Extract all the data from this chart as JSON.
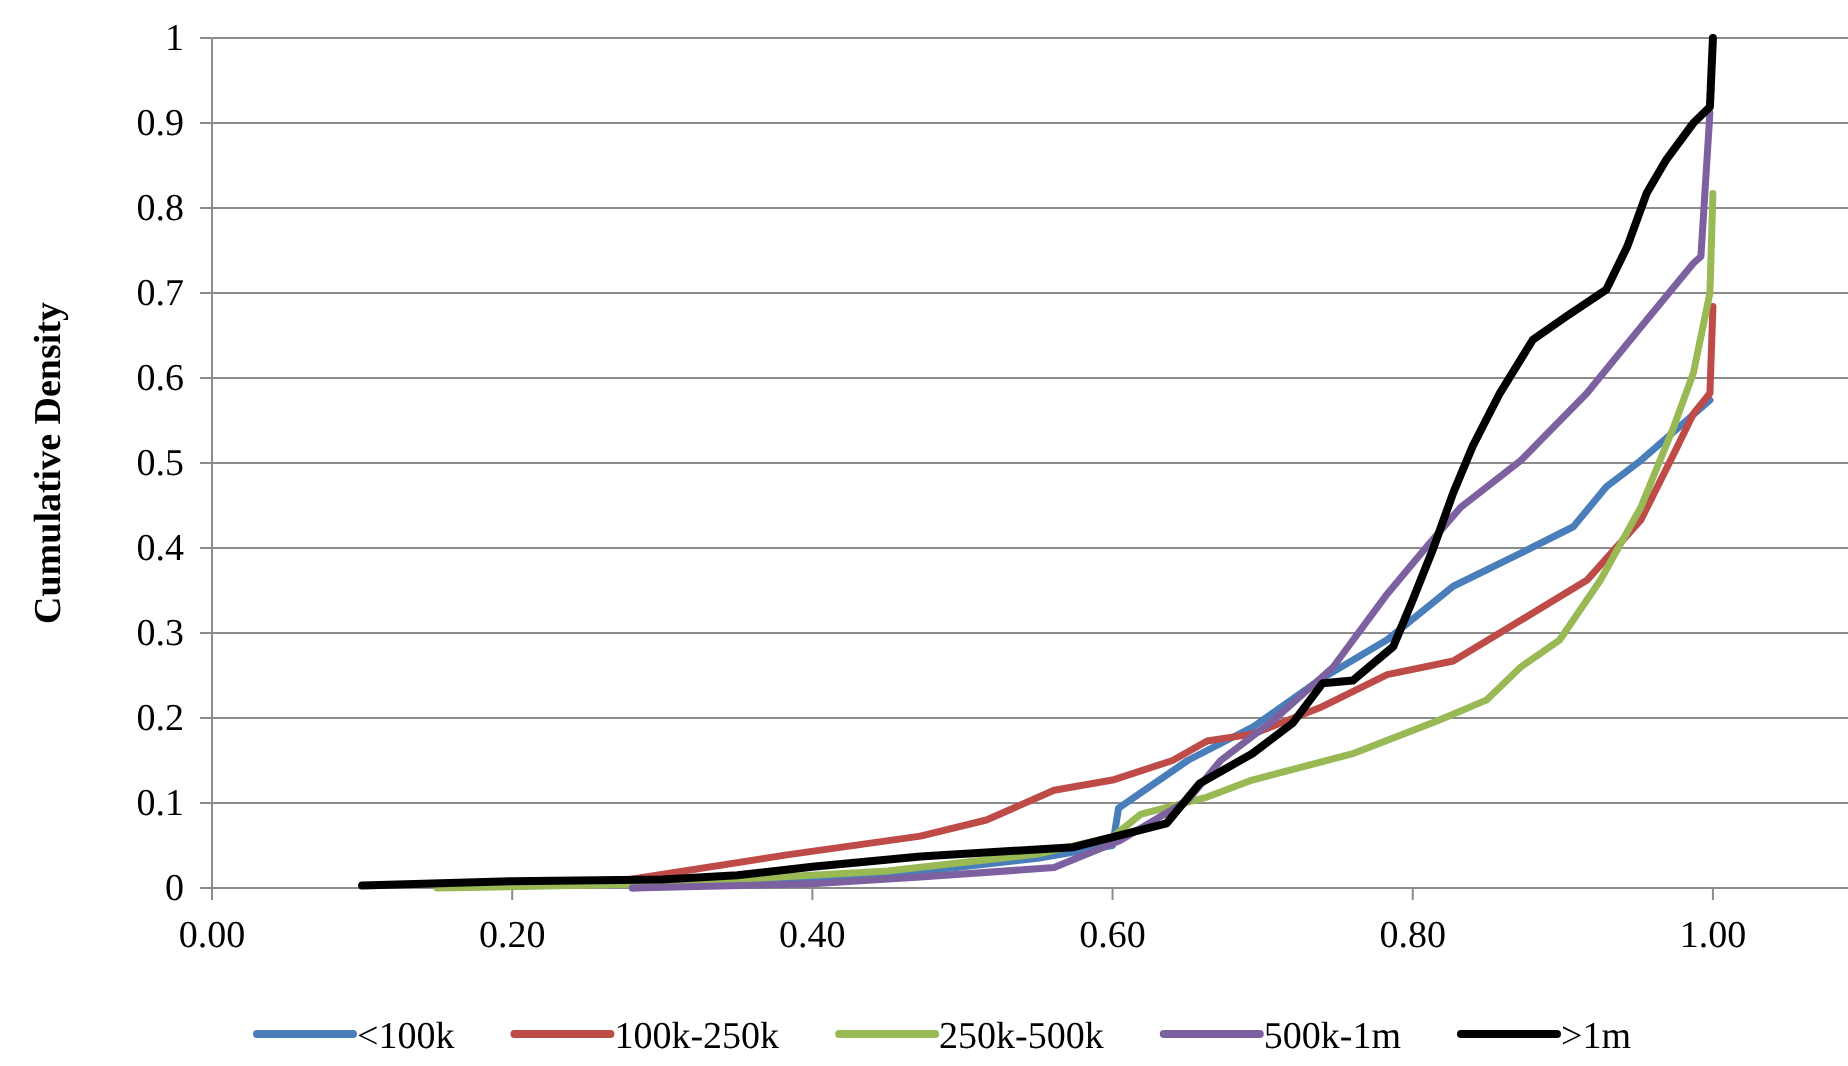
{
  "chart_data": {
    "type": "line",
    "ylabel": "Cumulative Density",
    "xlim": [
      0,
      1.09
    ],
    "xticks": [
      {
        "value": 0,
        "label": "0.00"
      },
      {
        "value": 0.2,
        "label": "0.20"
      },
      {
        "value": 0.4,
        "label": "0.40"
      },
      {
        "value": 0.6,
        "label": "0.60"
      },
      {
        "value": 0.8,
        "label": "0.80"
      },
      {
        "value": 1,
        "label": "1.00"
      }
    ],
    "ylim": [
      0,
      1
    ],
    "yticks": [
      0,
      0.1,
      0.2,
      0.3,
      0.4,
      0.5,
      0.6,
      0.7,
      0.8,
      0.9,
      1
    ],
    "grid": "y",
    "legend": "bottom",
    "marker": "none",
    "line_style": "solid",
    "series": [
      {
        "name": "<100k",
        "color": "#4a7ebb",
        "x": [
          0.28,
          0.45,
          0.55,
          0.6,
          0.604,
          0.65,
          0.694,
          0.738,
          0.783,
          0.827,
          0.872,
          0.907,
          0.929,
          0.952,
          0.978,
          0.998
        ],
        "values": [
          0,
          0.015,
          0.035,
          0.05,
          0.094,
          0.15,
          0.19,
          0.245,
          0.292,
          0.355,
          0.394,
          0.425,
          0.472,
          0.503,
          0.543,
          0.574
        ]
      },
      {
        "name": "100k-250k",
        "color": "#be4b48",
        "x": [
          0.26,
          0.383,
          0.472,
          0.516,
          0.561,
          0.6,
          0.64,
          0.663,
          0.693,
          0.738,
          0.783,
          0.827,
          0.872,
          0.916,
          0.952,
          0.974,
          0.987,
          0.998,
          1.0
        ],
        "values": [
          0.005,
          0.039,
          0.061,
          0.08,
          0.115,
          0.127,
          0.15,
          0.173,
          0.181,
          0.212,
          0.251,
          0.267,
          0.315,
          0.362,
          0.433,
          0.511,
          0.558,
          0.582,
          0.684
        ]
      },
      {
        "name": "250k-500k",
        "color": "#98b954",
        "x": [
          0.15,
          0.3,
          0.45,
          0.55,
          0.6,
          0.619,
          0.663,
          0.693,
          0.76,
          0.817,
          0.849,
          0.872,
          0.898,
          0.925,
          0.952,
          0.974,
          0.987,
          0.998,
          1.0
        ],
        "values": [
          0,
          0.005,
          0.02,
          0.04,
          0.06,
          0.087,
          0.107,
          0.127,
          0.158,
          0.197,
          0.221,
          0.26,
          0.292,
          0.362,
          0.448,
          0.543,
          0.606,
          0.7,
          0.817
        ]
      },
      {
        "name": "500k-1m",
        "color": "#7d60a0",
        "x": [
          0.28,
          0.4,
          0.472,
          0.561,
          0.605,
          0.65,
          0.672,
          0.707,
          0.747,
          0.783,
          0.809,
          0.832,
          0.872,
          0.916,
          0.952,
          0.987,
          0.992,
          0.998
        ],
        "values": [
          0,
          0.005,
          0.013,
          0.024,
          0.056,
          0.103,
          0.15,
          0.197,
          0.26,
          0.346,
          0.401,
          0.448,
          0.503,
          0.582,
          0.66,
          0.735,
          0.743,
          0.912
        ]
      },
      {
        "name": ">1m",
        "color": "#000000",
        "x": [
          0.1,
          0.2,
          0.3,
          0.35,
          0.4,
          0.472,
          0.574,
          0.636,
          0.658,
          0.693,
          0.72,
          0.74,
          0.76,
          0.787,
          0.8,
          0.814,
          0.827,
          0.84,
          0.858,
          0.88,
          0.902,
          0.929,
          0.943,
          0.956,
          0.969,
          0.987,
          0.998,
          1.0
        ],
        "values": [
          0.003,
          0.008,
          0.01,
          0.015,
          0.025,
          0.037,
          0.048,
          0.076,
          0.123,
          0.158,
          0.194,
          0.241,
          0.244,
          0.284,
          0.339,
          0.401,
          0.465,
          0.52,
          0.582,
          0.645,
          0.672,
          0.704,
          0.755,
          0.818,
          0.857,
          0.9,
          0.919,
          1.0
        ]
      }
    ]
  }
}
